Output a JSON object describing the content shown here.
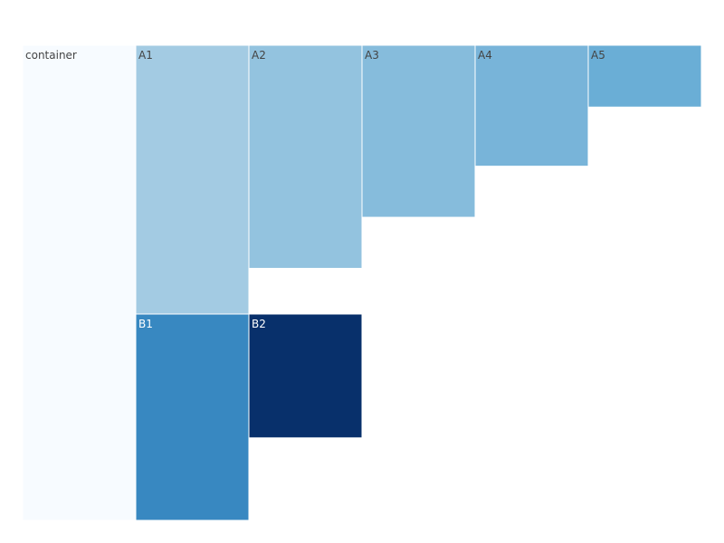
{
  "chart_data": {
    "type": "icicle",
    "root": {
      "label": "container",
      "color": "#f7fbff",
      "text_color": "#444444"
    },
    "nodes": [
      {
        "label": "A1",
        "parent": "container",
        "color": "#a3cbe3",
        "text_color": "#444444",
        "depth": 1,
        "fill_fraction": 1.0
      },
      {
        "label": "A2",
        "parent": "container",
        "color": "#93c3df",
        "text_color": "#444444",
        "depth": 1,
        "fill_fraction": 0.83
      },
      {
        "label": "A3",
        "parent": "container",
        "color": "#86bcdc",
        "text_color": "#444444",
        "depth": 1,
        "fill_fraction": 0.64
      },
      {
        "label": "A4",
        "parent": "container",
        "color": "#78b4d9",
        "text_color": "#444444",
        "depth": 1,
        "fill_fraction": 0.45
      },
      {
        "label": "A5",
        "parent": "container",
        "color": "#6aaed6",
        "text_color": "#444444",
        "depth": 1,
        "fill_fraction": 0.23
      },
      {
        "label": "B1",
        "parent": "A1",
        "color": "#3888c1",
        "text_color": "#ffffff",
        "depth": 2,
        "fill_fraction": 1.0
      },
      {
        "label": "B2",
        "parent": "A2",
        "color": "#08306b",
        "text_color": "#ffffff",
        "depth": 2,
        "fill_fraction": 0.6
      }
    ]
  }
}
